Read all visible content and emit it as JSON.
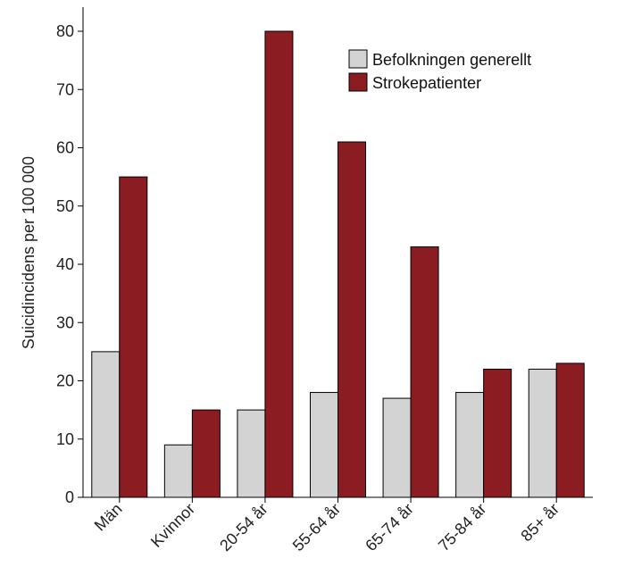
{
  "chart_data": {
    "type": "bar",
    "title": "",
    "xlabel": "",
    "ylabel": "Suicidincidens per 100 000",
    "ylim": [
      0,
      80
    ],
    "yticks": [
      0,
      10,
      20,
      30,
      40,
      50,
      60,
      70,
      80
    ],
    "grid": false,
    "legend_position": "top-right",
    "categories": [
      "Män",
      "Kvinnor",
      "20-54 år",
      "55-64 år",
      "65-74 år",
      "75-84 år",
      "85+ år"
    ],
    "series": [
      {
        "name": "Befolkningen generellt",
        "color": "#d3d3d3",
        "values": [
          25,
          9,
          15,
          18,
          17,
          18,
          22
        ]
      },
      {
        "name": "Strokepatienter",
        "color": "#8b1c22",
        "values": [
          55,
          15,
          80,
          61,
          43,
          22,
          23
        ]
      }
    ]
  }
}
